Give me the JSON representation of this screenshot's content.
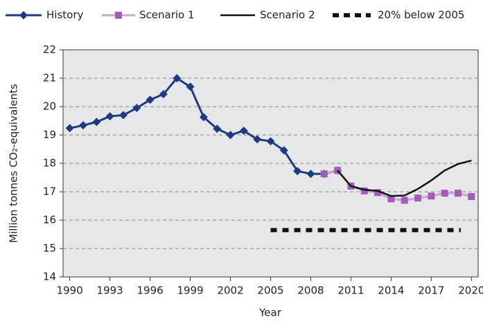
{
  "chart_data": {
    "type": "line",
    "y_label": "Million tonnes CO₂-equivalents",
    "x_label": "Year",
    "xlim": [
      1989.5,
      2020.5
    ],
    "xticks": [
      1990,
      1993,
      1996,
      1999,
      2002,
      2005,
      2008,
      2011,
      2014,
      2017,
      2020
    ],
    "ylim": [
      14,
      22
    ],
    "yticks": [
      14,
      15,
      16,
      17,
      18,
      19,
      20,
      21,
      22
    ],
    "grid": true,
    "legend": "top",
    "series": [
      {
        "name": "History",
        "color": "#1f3a80",
        "marker": "diamond",
        "line_style": "solid",
        "x": [
          1990,
          1991,
          1992,
          1993,
          1994,
          1995,
          1996,
          1997,
          1998,
          1999,
          2000,
          2001,
          2002,
          2003,
          2004,
          2005,
          2006,
          2007,
          2008,
          2009,
          2010
        ],
        "values": [
          19.24,
          19.34,
          19.46,
          19.66,
          19.7,
          19.95,
          20.24,
          20.44,
          21.0,
          20.7,
          19.63,
          19.22,
          19.0,
          19.15,
          18.85,
          18.78,
          18.46,
          17.73,
          17.63,
          17.63,
          17.75
        ]
      },
      {
        "name": "Scenario 1",
        "color": "#a35db8",
        "marker": "square",
        "line_style": "solid",
        "x": [
          2009,
          2010,
          2011,
          2012,
          2013,
          2014,
          2015,
          2016,
          2017,
          2018,
          2019,
          2020
        ],
        "values": [
          17.63,
          17.75,
          17.2,
          17.03,
          16.97,
          16.75,
          16.7,
          16.78,
          16.85,
          16.95,
          16.95,
          16.83
        ]
      },
      {
        "name": "Scenario 2",
        "color": "#111111",
        "marker": "none",
        "line_style": "solid",
        "x": [
          2010,
          2011,
          2012,
          2013,
          2014,
          2015,
          2016,
          2017,
          2018,
          2019,
          2020
        ],
        "values": [
          17.75,
          17.2,
          17.07,
          17.03,
          16.85,
          16.87,
          17.1,
          17.4,
          17.75,
          17.98,
          18.1
        ]
      },
      {
        "name": "20% below 2005",
        "color": "#111111",
        "marker": "none",
        "line_style": "dashed",
        "x": [
          2005,
          2019.2
        ],
        "values": [
          15.65,
          15.65
        ]
      }
    ]
  }
}
